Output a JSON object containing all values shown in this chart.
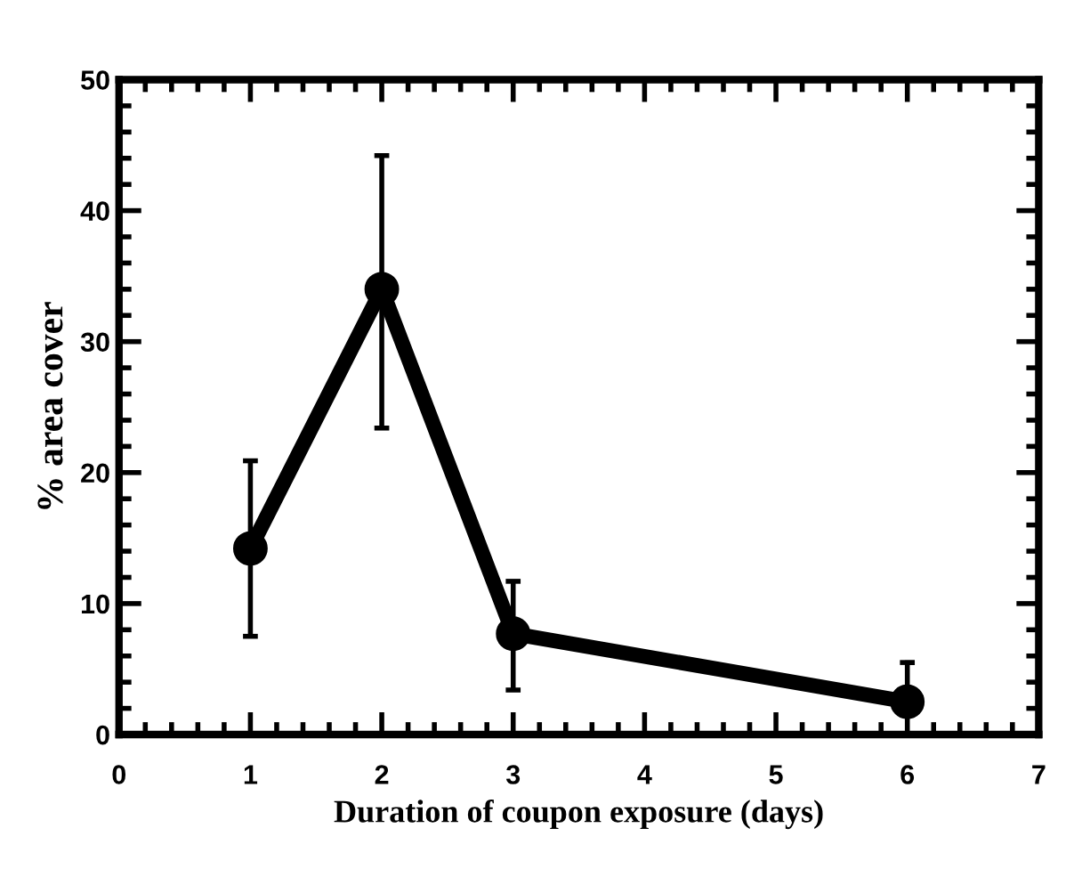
{
  "chart_data": {
    "type": "line",
    "xlabel": "Duration of coupon exposure (days)",
    "ylabel": "% area cover",
    "x": [
      1,
      2,
      3,
      6
    ],
    "series": [
      {
        "color": "#000000",
        "values": [
          14.2,
          34.0,
          7.7,
          2.5
        ],
        "errors": [
          [
            7.5,
            20.9
          ],
          [
            23.4,
            44.2
          ],
          [
            3.4,
            11.7
          ],
          [
            2.5,
            5.5
          ]
        ]
      }
    ],
    "xlim": [
      0,
      7
    ],
    "xticks": [
      0,
      1,
      2,
      3,
      4,
      5,
      6,
      7
    ],
    "ylim": [
      0,
      50
    ],
    "yticks": [
      0,
      10,
      20,
      30,
      40,
      50
    ],
    "marker": "circle",
    "line_style": "solid",
    "grid": false,
    "legend": false
  }
}
